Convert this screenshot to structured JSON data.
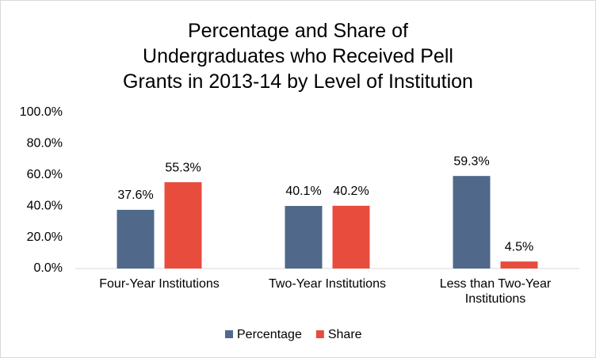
{
  "chart_data": {
    "type": "bar",
    "title": "Percentage and Share of Undergraduates who Received Pell Grants in 2013-14 by Level of Institution",
    "categories": [
      "Four-Year Institutions",
      "Two-Year Institutions",
      "Less than Two-Year Institutions"
    ],
    "series": [
      {
        "name": "Percentage",
        "color": "#50698a",
        "values": [
          37.6,
          40.1,
          59.3
        ],
        "value_labels": [
          "37.6%",
          "40.1%",
          "59.3%"
        ]
      },
      {
        "name": "Share",
        "color": "#e84c3d",
        "values": [
          55.3,
          40.2,
          4.5
        ],
        "value_labels": [
          "55.3%",
          "40.2%",
          "4.5%"
        ]
      }
    ],
    "ylim": [
      0,
      100
    ],
    "yticks": [
      {
        "value": 0,
        "label": "0.0%"
      },
      {
        "value": 20,
        "label": "20.0%"
      },
      {
        "value": 40,
        "label": "40.0%"
      },
      {
        "value": 60,
        "label": "60.0%"
      },
      {
        "value": 80,
        "label": "80.0%"
      },
      {
        "value": 100,
        "label": "100.0%"
      }
    ],
    "grid": false,
    "legend": "bottom"
  }
}
